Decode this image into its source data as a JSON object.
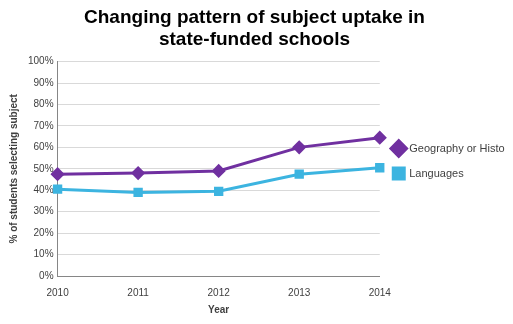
{
  "chart_data": {
    "type": "line",
    "title": "Changing pattern of subject uptake in state-funded schools",
    "x_label": "Year",
    "y_label": "% of students selecting subject",
    "categories": [
      "2010",
      "2011",
      "2012",
      "2013",
      "2014"
    ],
    "series": [
      {
        "name": "Geography or History",
        "color": "#7030a0",
        "marker": "diamond",
        "values": [
          47.5,
          48,
          49,
          60,
          64.5
        ]
      },
      {
        "name": "Languages",
        "color": "#3cb4e0",
        "marker": "square",
        "values": [
          40.5,
          39,
          39.5,
          47.5,
          50.5
        ]
      }
    ],
    "ylim": [
      0,
      100
    ],
    "yticks": [
      {
        "value": 0,
        "label": "0%"
      },
      {
        "value": 10,
        "label": "10%"
      },
      {
        "value": 20,
        "label": "20%"
      },
      {
        "value": 30,
        "label": "30%"
      },
      {
        "value": 40,
        "label": "40%"
      },
      {
        "value": 50,
        "label": "50%"
      },
      {
        "value": 60,
        "label": "60%"
      },
      {
        "value": 70,
        "label": "70%"
      },
      {
        "value": 80,
        "label": "80%"
      },
      {
        "value": 90,
        "label": "90%"
      },
      {
        "value": 100,
        "label": "100%"
      }
    ],
    "grid": true,
    "legend": "right"
  }
}
